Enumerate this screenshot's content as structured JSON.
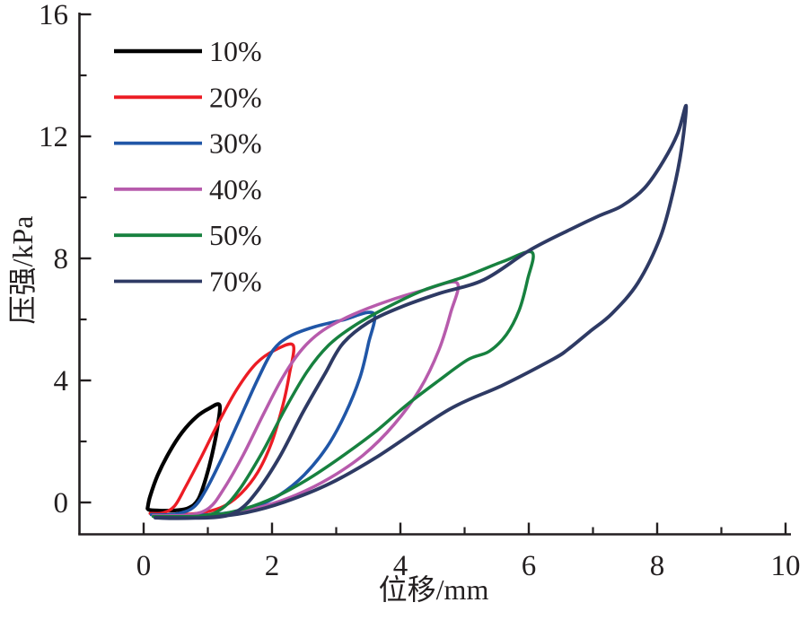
{
  "figure": {
    "background": "#ffffff",
    "axis_color": "#231f20",
    "text_color": "#231f20"
  },
  "chart_data": {
    "type": "line",
    "title": "",
    "xlabel": "位移/mm",
    "ylabel": "压强/kPa",
    "xlim": [
      -1,
      10.1
    ],
    "ylim": [
      -1.1,
      16.1
    ],
    "grid": false,
    "legend_position": "top-left",
    "x_major_ticks": [
      0,
      2,
      4,
      6,
      8,
      10
    ],
    "x_minor_ticks": [
      1,
      3,
      5,
      7,
      9
    ],
    "y_major_ticks": [
      0,
      4,
      8,
      12,
      16
    ],
    "y_minor_ticks": [
      2,
      6,
      10,
      14
    ],
    "series": [
      {
        "name": "10%",
        "color": "#000000",
        "width": 4.2,
        "peak": [
          1.18,
          3.2
        ],
        "points": [
          [
            0.06,
            -0.2
          ],
          [
            0.1,
            0.2
          ],
          [
            0.22,
            0.9
          ],
          [
            0.4,
            1.65
          ],
          [
            0.6,
            2.3
          ],
          [
            0.82,
            2.8
          ],
          [
            1.02,
            3.08
          ],
          [
            1.18,
            3.2
          ],
          [
            1.16,
            2.6
          ],
          [
            1.08,
            1.7
          ],
          [
            0.97,
            0.8
          ],
          [
            0.85,
            0.1
          ],
          [
            0.7,
            -0.18
          ],
          [
            0.5,
            -0.26
          ],
          [
            0.28,
            -0.27
          ],
          [
            0.1,
            -0.25
          ],
          [
            0.06,
            -0.2
          ]
        ]
      },
      {
        "name": "20%",
        "color": "#ec1c24",
        "width": 3.4,
        "peak": [
          2.33,
          5.15
        ],
        "points": [
          [
            0.1,
            -0.36
          ],
          [
            0.3,
            -0.34
          ],
          [
            0.48,
            -0.12
          ],
          [
            0.65,
            0.5
          ],
          [
            0.9,
            1.5
          ],
          [
            1.15,
            2.55
          ],
          [
            1.45,
            3.7
          ],
          [
            1.75,
            4.55
          ],
          [
            2.05,
            5.0
          ],
          [
            2.33,
            5.15
          ],
          [
            2.27,
            4.2
          ],
          [
            2.17,
            3.2
          ],
          [
            2.0,
            2.0
          ],
          [
            1.78,
            1.0
          ],
          [
            1.52,
            0.3
          ],
          [
            1.25,
            -0.12
          ],
          [
            0.95,
            -0.32
          ],
          [
            0.6,
            -0.4
          ],
          [
            0.3,
            -0.41
          ],
          [
            0.1,
            -0.36
          ]
        ]
      },
      {
        "name": "30%",
        "color": "#2056a7",
        "width": 3.6,
        "peak": [
          3.58,
          6.2
        ],
        "points": [
          [
            0.12,
            -0.4
          ],
          [
            0.5,
            -0.38
          ],
          [
            0.78,
            -0.15
          ],
          [
            0.98,
            0.45
          ],
          [
            1.22,
            1.45
          ],
          [
            1.5,
            2.75
          ],
          [
            1.78,
            4.05
          ],
          [
            2.02,
            5.0
          ],
          [
            2.28,
            5.45
          ],
          [
            2.65,
            5.75
          ],
          [
            3.1,
            5.98
          ],
          [
            3.58,
            6.2
          ],
          [
            3.5,
            5.2
          ],
          [
            3.37,
            4.1
          ],
          [
            3.14,
            2.9
          ],
          [
            2.85,
            1.8
          ],
          [
            2.5,
            0.9
          ],
          [
            2.12,
            0.25
          ],
          [
            1.72,
            -0.15
          ],
          [
            1.25,
            -0.36
          ],
          [
            0.75,
            -0.43
          ],
          [
            0.35,
            -0.43
          ],
          [
            0.12,
            -0.4
          ]
        ]
      },
      {
        "name": "40%",
        "color": "#b75bac",
        "width": 3.5,
        "peak": [
          4.88,
          7.2
        ],
        "points": [
          [
            0.15,
            -0.43
          ],
          [
            0.7,
            -0.41
          ],
          [
            1.02,
            -0.18
          ],
          [
            1.25,
            0.45
          ],
          [
            1.55,
            1.55
          ],
          [
            1.88,
            2.95
          ],
          [
            2.18,
            4.15
          ],
          [
            2.48,
            5.05
          ],
          [
            2.8,
            5.65
          ],
          [
            3.25,
            6.15
          ],
          [
            3.8,
            6.6
          ],
          [
            4.35,
            6.95
          ],
          [
            4.88,
            7.2
          ],
          [
            4.78,
            6.2
          ],
          [
            4.6,
            5.0
          ],
          [
            4.3,
            3.7
          ],
          [
            3.9,
            2.55
          ],
          [
            3.42,
            1.55
          ],
          [
            2.9,
            0.8
          ],
          [
            2.38,
            0.25
          ],
          [
            1.88,
            -0.12
          ],
          [
            1.38,
            -0.36
          ],
          [
            0.8,
            -0.46
          ],
          [
            0.35,
            -0.46
          ],
          [
            0.15,
            -0.43
          ]
        ]
      },
      {
        "name": "50%",
        "color": "#17813f",
        "width": 3.5,
        "peak": [
          6.05,
          8.2
        ],
        "points": [
          [
            0.15,
            -0.46
          ],
          [
            0.9,
            -0.44
          ],
          [
            1.22,
            -0.2
          ],
          [
            1.5,
            0.45
          ],
          [
            1.85,
            1.65
          ],
          [
            2.2,
            3.05
          ],
          [
            2.55,
            4.3
          ],
          [
            2.88,
            5.15
          ],
          [
            3.25,
            5.75
          ],
          [
            3.75,
            6.35
          ],
          [
            4.35,
            6.95
          ],
          [
            5.0,
            7.4
          ],
          [
            5.6,
            7.9
          ],
          [
            6.05,
            8.2
          ],
          [
            5.98,
            7.3
          ],
          [
            5.85,
            6.3
          ],
          [
            5.65,
            5.5
          ],
          [
            5.38,
            4.95
          ],
          [
            5.05,
            4.68
          ],
          [
            4.6,
            4.0
          ],
          [
            4.1,
            3.2
          ],
          [
            3.6,
            2.3
          ],
          [
            3.05,
            1.45
          ],
          [
            2.55,
            0.75
          ],
          [
            2.05,
            0.18
          ],
          [
            1.58,
            -0.2
          ],
          [
            1.05,
            -0.43
          ],
          [
            0.45,
            -0.48
          ],
          [
            0.15,
            -0.46
          ]
        ]
      },
      {
        "name": "70%",
        "color": "#2e3a64",
        "width": 3.9,
        "peak": [
          8.45,
          13.0
        ],
        "points": [
          [
            0.18,
            -0.5
          ],
          [
            1.1,
            -0.49
          ],
          [
            1.48,
            -0.26
          ],
          [
            1.78,
            0.4
          ],
          [
            2.12,
            1.5
          ],
          [
            2.48,
            2.95
          ],
          [
            2.82,
            4.2
          ],
          [
            3.1,
            5.2
          ],
          [
            3.5,
            5.9
          ],
          [
            4.0,
            6.4
          ],
          [
            4.6,
            6.85
          ],
          [
            5.3,
            7.3
          ],
          [
            6.0,
            8.25
          ],
          [
            6.6,
            8.9
          ],
          [
            7.1,
            9.4
          ],
          [
            7.45,
            9.72
          ],
          [
            7.8,
            10.3
          ],
          [
            8.1,
            11.2
          ],
          [
            8.32,
            12.1
          ],
          [
            8.45,
            13.0
          ],
          [
            8.38,
            11.6
          ],
          [
            8.25,
            10.2
          ],
          [
            8.05,
            8.7
          ],
          [
            7.7,
            7.2
          ],
          [
            7.3,
            6.2
          ],
          [
            6.95,
            5.6
          ],
          [
            6.6,
            5.0
          ],
          [
            6.38,
            4.7
          ],
          [
            5.6,
            3.85
          ],
          [
            4.76,
            3.05
          ],
          [
            3.64,
            1.5
          ],
          [
            2.9,
            0.62
          ],
          [
            2.2,
            0.02
          ],
          [
            1.6,
            -0.33
          ],
          [
            1.0,
            -0.49
          ],
          [
            0.45,
            -0.52
          ],
          [
            0.18,
            -0.5
          ]
        ]
      }
    ]
  },
  "legend": {
    "items": [
      "10%",
      "20%",
      "30%",
      "40%",
      "50%",
      "70%"
    ]
  }
}
